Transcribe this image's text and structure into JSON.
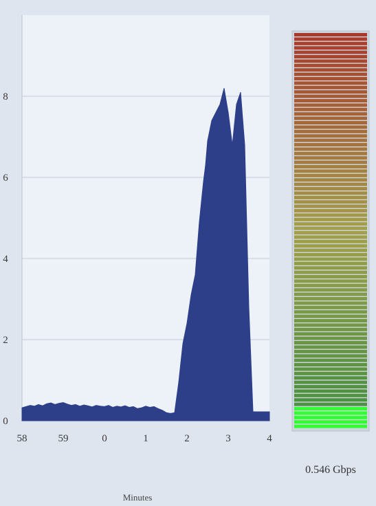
{
  "chart_data": {
    "type": "area",
    "title": "",
    "xlabel": "Minutes",
    "ylabel": "",
    "x_tick_labels": [
      "58",
      "59",
      "0",
      "1",
      "2",
      "3",
      "4"
    ],
    "y_tick_labels": [
      "0",
      "2",
      "4",
      "6",
      "8"
    ],
    "xlim": [
      0,
      6
    ],
    "ylim": [
      0,
      10
    ],
    "grid": true,
    "series": [
      {
        "color": "#2e3f8a",
        "x": [
          0.0,
          0.1,
          0.2,
          0.3,
          0.4,
          0.5,
          0.6,
          0.7,
          0.8,
          0.9,
          1.0,
          1.1,
          1.2,
          1.3,
          1.4,
          1.5,
          1.6,
          1.7,
          1.8,
          1.9,
          2.0,
          2.1,
          2.2,
          2.3,
          2.4,
          2.5,
          2.6,
          2.7,
          2.8,
          2.9,
          3.0,
          3.1,
          3.2,
          3.3,
          3.4,
          3.5,
          3.6,
          3.7,
          3.8,
          3.9,
          4.0,
          4.1,
          4.2,
          4.3,
          4.4,
          4.45,
          4.5,
          4.6,
          4.7,
          4.8,
          4.9,
          5.0,
          5.1,
          5.2,
          5.3,
          5.4,
          5.5,
          5.6,
          5.7,
          5.8,
          5.9,
          6.0
        ],
        "y": [
          0.32,
          0.35,
          0.38,
          0.36,
          0.4,
          0.37,
          0.42,
          0.44,
          0.4,
          0.43,
          0.45,
          0.41,
          0.38,
          0.4,
          0.36,
          0.39,
          0.37,
          0.34,
          0.38,
          0.36,
          0.35,
          0.38,
          0.33,
          0.36,
          0.34,
          0.37,
          0.33,
          0.35,
          0.3,
          0.32,
          0.36,
          0.33,
          0.35,
          0.3,
          0.26,
          0.2,
          0.18,
          0.2,
          0.95,
          1.9,
          2.4,
          3.1,
          3.6,
          4.9,
          5.9,
          6.3,
          6.9,
          7.4,
          7.6,
          7.8,
          8.2,
          7.6,
          6.8,
          7.8,
          8.1,
          6.8,
          2.8,
          0.22,
          0.22,
          0.22,
          0.22,
          0.22
        ]
      }
    ]
  },
  "meter": {
    "value": 0.546,
    "label": "0.546 Gbps",
    "top_color": "#a93a2a",
    "mid_color": "#a3a048",
    "bottom_color": "#3f8f3f",
    "active_color": "#32ff32"
  }
}
